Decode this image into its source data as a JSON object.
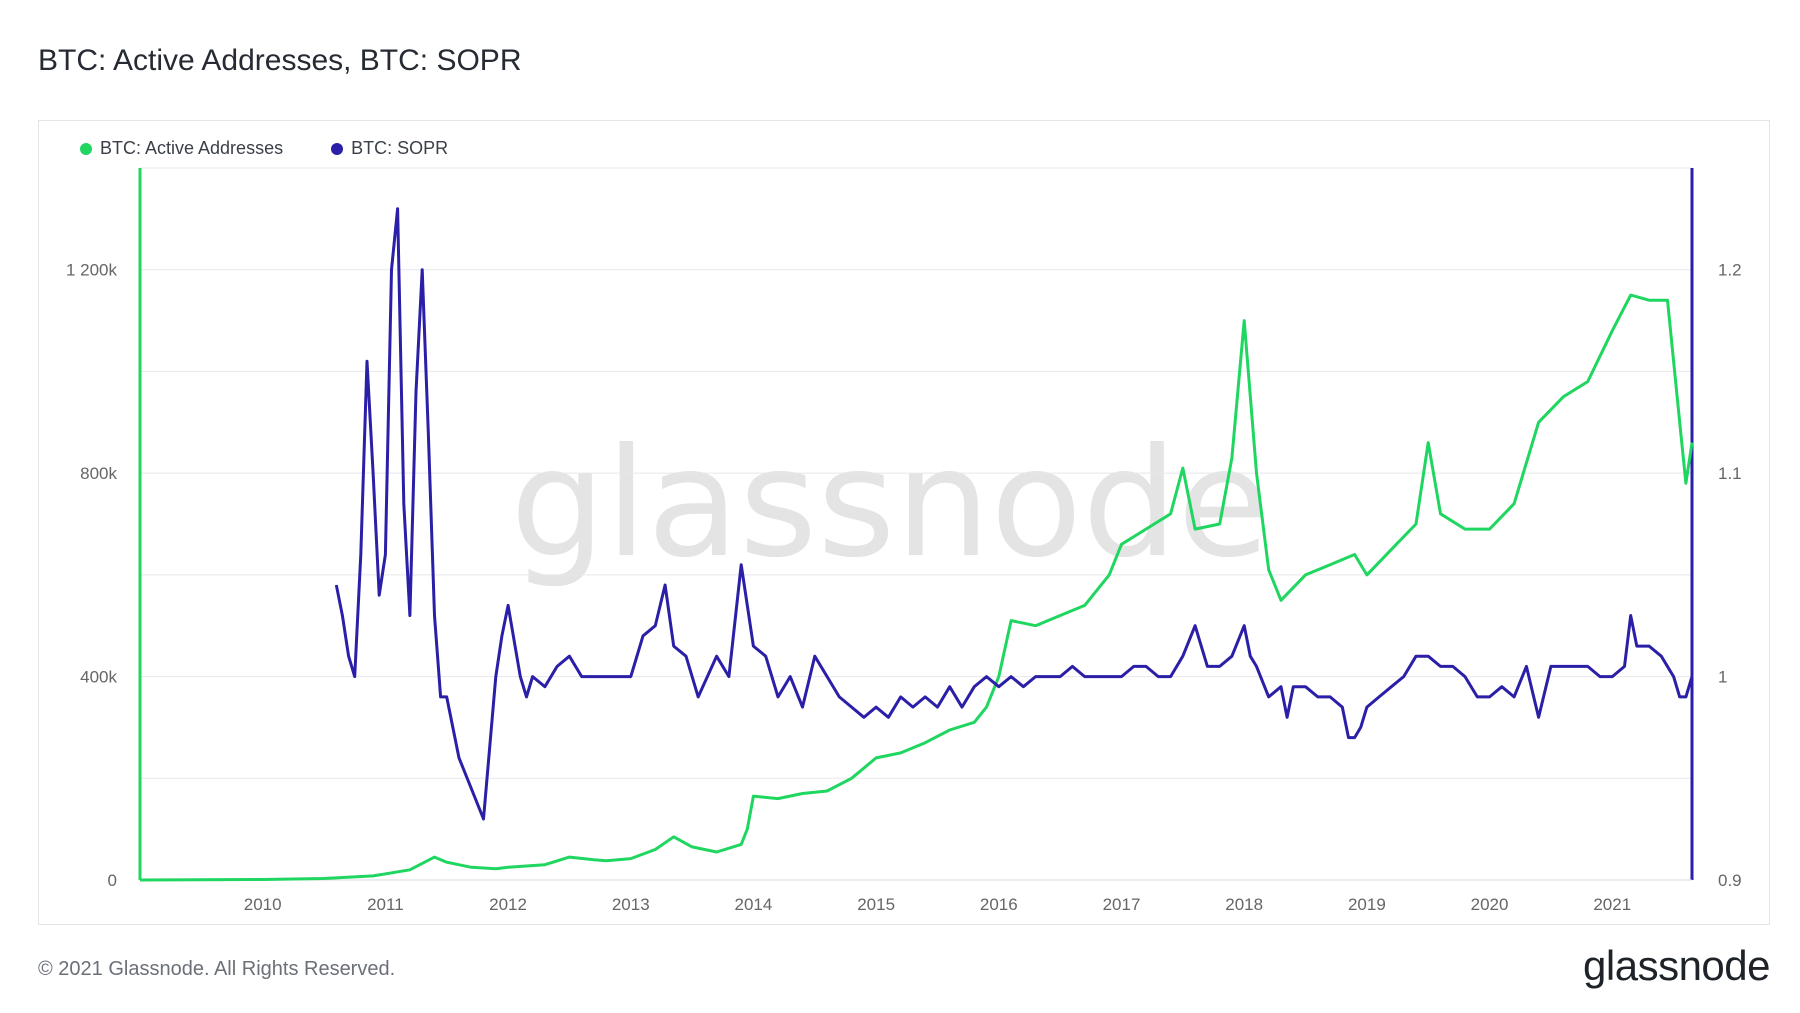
{
  "page": {
    "title": "BTC: Active Addresses, BTC: SOPR",
    "footer": "© 2021 Glassnode. All Rights Reserved.",
    "brand": "glassnode",
    "watermark": "glassnode"
  },
  "colors": {
    "active_addresses": "#1fd660",
    "sopr": "#2a1fa6",
    "grid": "#e6e8eb",
    "watermark": "#e4e4e4"
  },
  "chart_data": {
    "type": "line",
    "title": "BTC: Active Addresses, BTC: SOPR",
    "legend_position": "top-left",
    "grid": true,
    "x_range": [
      2009.0,
      2021.65
    ],
    "x_ticks": [
      "2010",
      "2011",
      "2012",
      "2013",
      "2014",
      "2015",
      "2016",
      "2017",
      "2018",
      "2019",
      "2020",
      "2021"
    ],
    "y_left": {
      "label": "",
      "range": [
        0,
        1400000
      ],
      "ticks": [
        0,
        400000,
        800000,
        1200000
      ],
      "tick_labels": [
        "0",
        "400k",
        "800k",
        "1 200k"
      ]
    },
    "y_right": {
      "label": "",
      "range": [
        0.9,
        1.25
      ],
      "ticks": [
        0.9,
        1.0,
        1.1,
        1.2
      ],
      "tick_labels": [
        "0.9",
        "1",
        "1.1",
        "1.2"
      ]
    },
    "series": [
      {
        "name": "BTC: Active Addresses",
        "axis": "left",
        "x": [
          2009.0,
          2010.0,
          2010.5,
          2010.9,
          2011.2,
          2011.4,
          2011.5,
          2011.7,
          2011.9,
          2012.0,
          2012.3,
          2012.5,
          2012.7,
          2012.8,
          2013.0,
          2013.2,
          2013.35,
          2013.5,
          2013.7,
          2013.9,
          2013.95,
          2014.0,
          2014.2,
          2014.4,
          2014.6,
          2014.8,
          2015.0,
          2015.2,
          2015.4,
          2015.6,
          2015.8,
          2015.9,
          2016.0,
          2016.1,
          2016.3,
          2016.5,
          2016.7,
          2016.9,
          2017.0,
          2017.2,
          2017.4,
          2017.5,
          2017.6,
          2017.8,
          2017.9,
          2018.0,
          2018.1,
          2018.2,
          2018.3,
          2018.5,
          2018.7,
          2018.9,
          2019.0,
          2019.2,
          2019.4,
          2019.5,
          2019.6,
          2019.8,
          2020.0,
          2020.2,
          2020.4,
          2020.6,
          2020.8,
          2021.0,
          2021.15,
          2021.3,
          2021.45,
          2021.55,
          2021.6,
          2021.65
        ],
        "y": [
          0,
          1000,
          3000,
          8000,
          20000,
          45000,
          35000,
          25000,
          22000,
          25000,
          30000,
          45000,
          40000,
          38000,
          42000,
          60000,
          85000,
          65000,
          55000,
          70000,
          100000,
          165000,
          160000,
          170000,
          175000,
          200000,
          240000,
          250000,
          270000,
          295000,
          310000,
          340000,
          400000,
          510000,
          500000,
          520000,
          540000,
          600000,
          660000,
          690000,
          720000,
          810000,
          690000,
          700000,
          830000,
          1100000,
          800000,
          610000,
          550000,
          600000,
          620000,
          640000,
          600000,
          650000,
          700000,
          860000,
          720000,
          690000,
          690000,
          740000,
          900000,
          950000,
          980000,
          1080000,
          1150000,
          1140000,
          1140000,
          900000,
          780000,
          860000
        ]
      },
      {
        "name": "BTC: SOPR",
        "axis": "right",
        "x": [
          2010.6,
          2010.65,
          2010.7,
          2010.75,
          2010.8,
          2010.85,
          2010.9,
          2010.95,
          2011.0,
          2011.05,
          2011.1,
          2011.15,
          2011.2,
          2011.25,
          2011.3,
          2011.35,
          2011.4,
          2011.45,
          2011.5,
          2011.6,
          2011.7,
          2011.8,
          2011.9,
          2011.95,
          2012.0,
          2012.1,
          2012.15,
          2012.2,
          2012.3,
          2012.4,
          2012.5,
          2012.6,
          2012.7,
          2012.8,
          2012.9,
          2013.0,
          2013.1,
          2013.2,
          2013.28,
          2013.35,
          2013.45,
          2013.55,
          2013.7,
          2013.8,
          2013.9,
          2014.0,
          2014.1,
          2014.2,
          2014.3,
          2014.4,
          2014.5,
          2014.6,
          2014.7,
          2014.8,
          2014.9,
          2015.0,
          2015.1,
          2015.2,
          2015.3,
          2015.4,
          2015.5,
          2015.6,
          2015.7,
          2015.8,
          2015.9,
          2016.0,
          2016.1,
          2016.2,
          2016.3,
          2016.4,
          2016.5,
          2016.6,
          2016.7,
          2016.8,
          2016.9,
          2017.0,
          2017.1,
          2017.2,
          2017.3,
          2017.4,
          2017.5,
          2017.6,
          2017.7,
          2017.8,
          2017.9,
          2018.0,
          2018.05,
          2018.1,
          2018.2,
          2018.3,
          2018.35,
          2018.4,
          2018.5,
          2018.6,
          2018.7,
          2018.8,
          2018.85,
          2018.9,
          2018.95,
          2019.0,
          2019.1,
          2019.2,
          2019.3,
          2019.4,
          2019.5,
          2019.6,
          2019.7,
          2019.8,
          2019.9,
          2020.0,
          2020.1,
          2020.2,
          2020.3,
          2020.4,
          2020.5,
          2020.6,
          2020.7,
          2020.8,
          2020.9,
          2021.0,
          2021.1,
          2021.15,
          2021.2,
          2021.3,
          2021.4,
          2021.5,
          2021.55,
          2021.6,
          2021.65
        ],
        "y": [
          1.045,
          1.03,
          1.01,
          1.0,
          1.06,
          1.155,
          1.1,
          1.04,
          1.06,
          1.2,
          1.23,
          1.085,
          1.03,
          1.14,
          1.2,
          1.12,
          1.03,
          0.99,
          0.99,
          0.96,
          0.945,
          0.93,
          1.0,
          1.02,
          1.035,
          1.0,
          0.99,
          1.0,
          0.995,
          1.005,
          1.01,
          1.0,
          1.0,
          1.0,
          1.0,
          1.0,
          1.02,
          1.025,
          1.045,
          1.015,
          1.01,
          0.99,
          1.01,
          1.0,
          1.055,
          1.015,
          1.01,
          0.99,
          1.0,
          0.985,
          1.01,
          1.0,
          0.99,
          0.985,
          0.98,
          0.985,
          0.98,
          0.99,
          0.985,
          0.99,
          0.985,
          0.995,
          0.985,
          0.995,
          1.0,
          0.995,
          1.0,
          0.995,
          1.0,
          1.0,
          1.0,
          1.005,
          1.0,
          1.0,
          1.0,
          1.0,
          1.005,
          1.005,
          1.0,
          1.0,
          1.01,
          1.025,
          1.005,
          1.005,
          1.01,
          1.025,
          1.01,
          1.005,
          0.99,
          0.995,
          0.98,
          0.995,
          0.995,
          0.99,
          0.99,
          0.985,
          0.97,
          0.97,
          0.975,
          0.985,
          0.99,
          0.995,
          1.0,
          1.01,
          1.01,
          1.005,
          1.005,
          1.0,
          0.99,
          0.99,
          0.995,
          0.99,
          1.005,
          0.98,
          1.005,
          1.005,
          1.005,
          1.005,
          1.0,
          1.0,
          1.005,
          1.03,
          1.015,
          1.015,
          1.01,
          1.0,
          0.99,
          0.99,
          1.0
        ]
      }
    ]
  }
}
